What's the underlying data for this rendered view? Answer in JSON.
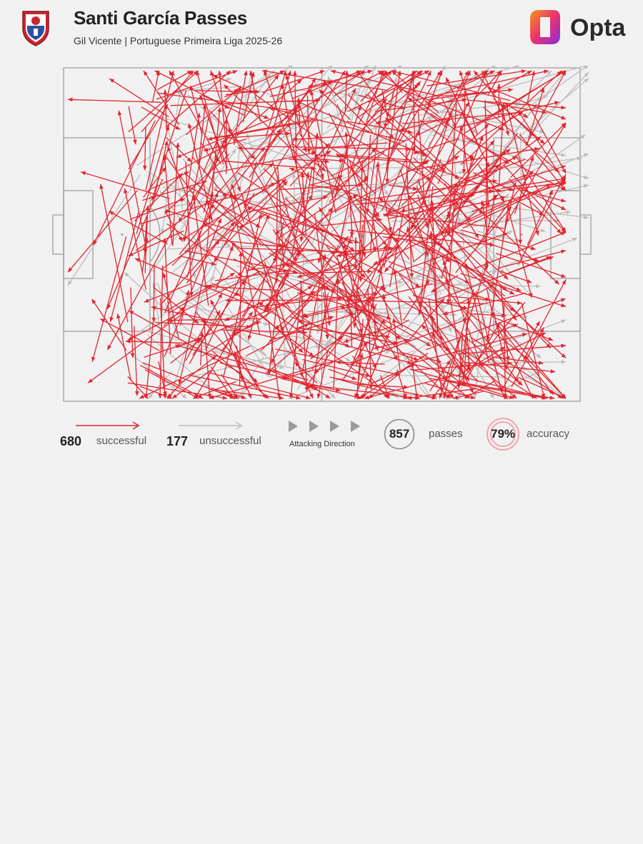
{
  "header": {
    "title": "Santi García Passes",
    "subtitle": "Gil Vicente | Portuguese Primeira Liga 2025-26",
    "brand": "Opta",
    "crest_text": "G.V.F.C"
  },
  "colors": {
    "successful": "#e1252f",
    "unsuccessful": "#bdbdbd",
    "pitch_lines": "#a6a6a6",
    "background": "#f1f1f1",
    "accuracy_ring": "#f1a5aa"
  },
  "legend": {
    "successful_count": "680",
    "successful_label": "successful",
    "unsuccessful_count": "177",
    "unsuccessful_label": "unsuccessful",
    "attacking_direction_label": "Attacking Direction",
    "passes_total": "857",
    "passes_label": "passes",
    "accuracy_value": "79%",
    "accuracy_label": "accuracy"
  },
  "chart_data": {
    "type": "scatter",
    "description_kind": "pass-map",
    "pitch": {
      "length": 105,
      "width": 68,
      "attacking_direction": "left-to-right"
    },
    "series": [
      {
        "name": "successful",
        "count": 680
      },
      {
        "name": "unsuccessful",
        "count": 177
      }
    ],
    "total_passes": 857,
    "accuracy_percent": 79
  }
}
